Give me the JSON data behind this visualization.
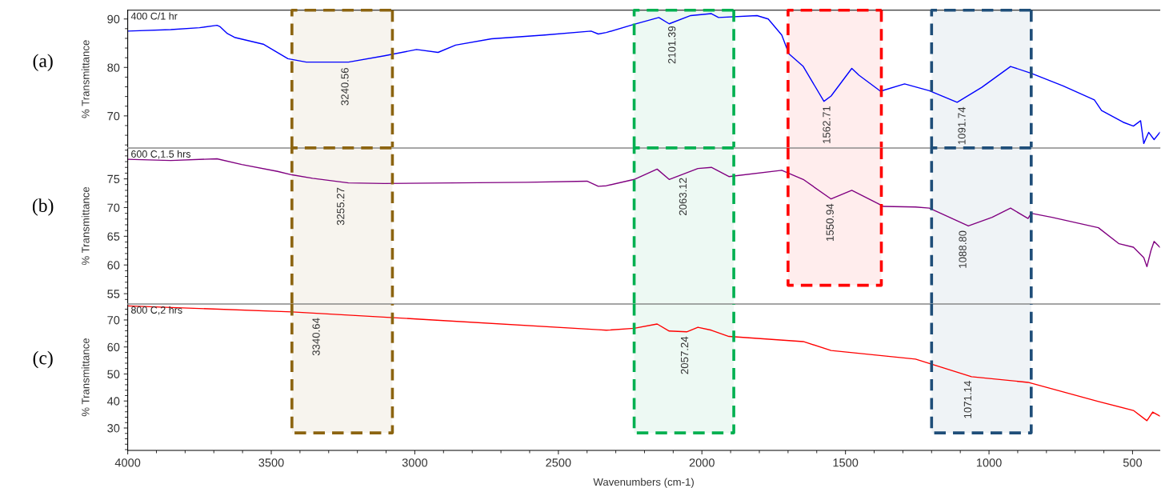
{
  "chart_data": [
    {
      "type": "line",
      "ylabel": "% Transmittance",
      "xlim": [
        4000,
        405
      ],
      "xticks": [
        4000,
        3500,
        3000,
        2500,
        2000,
        1500,
        1000,
        500
      ],
      "ylim": [
        63.4,
        91.8
      ],
      "yticks": [
        70,
        80,
        90
      ],
      "tick_labels": "y",
      "series": [
        {
          "name": "400 C/1 hr",
          "color": "#0000ff",
          "x": [
            4000,
            3850,
            3750,
            3689,
            3678,
            3653,
            3628,
            3528,
            3442,
            3378,
            3231,
            3106,
            2994,
            2919,
            2858,
            2733,
            2547,
            2386,
            2361,
            2333,
            2236,
            2150,
            2114,
            2039,
            1967,
            1942,
            1808,
            1769,
            1722,
            1697,
            1647,
            1575,
            1550,
            1478,
            1453,
            1378,
            1294,
            1208,
            1111,
            1025,
            925,
            853,
            742,
            633,
            608,
            533,
            497,
            472,
            461,
            444,
            425,
            405
          ],
          "values": [
            87.5,
            87.8,
            88.2,
            88.7,
            88.4,
            87.0,
            86.2,
            84.8,
            81.8,
            81.1,
            81.1,
            82.4,
            83.7,
            83.1,
            84.6,
            85.9,
            86.7,
            87.5,
            86.9,
            87.2,
            88.9,
            90.3,
            89.0,
            90.7,
            91.1,
            90.3,
            90.7,
            90.0,
            86.7,
            82.8,
            80.2,
            73.0,
            74.1,
            79.8,
            78.4,
            75.1,
            76.6,
            75.2,
            72.8,
            75.9,
            80.2,
            78.8,
            76.2,
            73.3,
            71.1,
            68.7,
            67.9,
            69.0,
            64.3,
            66.6,
            65.1,
            66.6
          ]
        }
      ],
      "annotations": [
        "(a)",
        {
          "text": "3240.56",
          "x": 3240.56,
          "y": 80.9
        },
        {
          "text": "2101.39",
          "x": 2101.39,
          "y": 89.5
        },
        {
          "text": "1562.71",
          "x": 1562.71,
          "y": 73.0
        },
        {
          "text": "1091.74",
          "x": 1091.74,
          "y": 72.8
        }
      ],
      "bands": [
        {
          "axis": "x",
          "from": 3428,
          "to": 3078,
          "label": null,
          "color": "#8c6410"
        },
        {
          "axis": "x",
          "from": 2236,
          "to": 1889,
          "label": null,
          "color": "#00b050"
        },
        {
          "axis": "x",
          "from": 1700,
          "to": 1375,
          "label": null,
          "color": "#ff0000"
        },
        {
          "axis": "x",
          "from": 1200,
          "to": 853,
          "label": null,
          "color": "#1f4e79"
        }
      ]
    },
    {
      "type": "line",
      "ylabel": "% Transmittance",
      "xlim": [
        4000,
        405
      ],
      "xticks": [
        4000,
        3500,
        3000,
        2500,
        2000,
        1500,
        1000,
        500
      ],
      "ylim": [
        53.2,
        80.4
      ],
      "yticks": [
        55,
        60,
        65,
        70,
        75
      ],
      "tick_labels": "y",
      "series": [
        {
          "name": "600 C,1.5 hrs",
          "color": "#800080",
          "x": [
            4000,
            3850,
            3689,
            3603,
            3478,
            3428,
            3356,
            3231,
            3106,
            2611,
            2400,
            2361,
            2333,
            2236,
            2156,
            2114,
            2014,
            1967,
            1906,
            1722,
            1647,
            1550,
            1478,
            1367,
            1256,
            1208,
            1072,
            989,
            925,
            864,
            853,
            781,
            619,
            547,
            497,
            461,
            450,
            436,
            425,
            405
          ],
          "values": [
            78.4,
            78.2,
            78.5,
            77.5,
            76.3,
            75.7,
            75.1,
            74.3,
            74.2,
            74.4,
            74.6,
            73.7,
            73.8,
            74.9,
            76.7,
            74.9,
            76.8,
            77.0,
            75.4,
            76.5,
            74.9,
            71.5,
            73.0,
            70.2,
            70.1,
            69.9,
            66.8,
            68.3,
            69.9,
            68.1,
            69.0,
            68.3,
            66.5,
            63.7,
            63.1,
            61.3,
            59.7,
            62.5,
            64.1,
            63.1
          ]
        }
      ],
      "annotations": [
        "(b)",
        {
          "text": "3255.27",
          "x": 3255.27,
          "y": 74.3
        },
        {
          "text": "2063.12",
          "x": 2063.12,
          "y": 76.0
        },
        {
          "text": "1550.94",
          "x": 1550.94,
          "y": 71.5
        },
        {
          "text": "1088.80",
          "x": 1088.8,
          "y": 66.8
        }
      ],
      "bands": [
        {
          "axis": "x",
          "from": 3428,
          "to": 3078,
          "label": null,
          "color": "#8c6410"
        },
        {
          "axis": "x",
          "from": 2236,
          "to": 1889,
          "label": null,
          "color": "#00b050"
        },
        {
          "axis": "x",
          "from": 1700,
          "to": 1375,
          "label": null,
          "color": "#ff0000"
        },
        {
          "axis": "x",
          "from": 1200,
          "to": 853,
          "label": null,
          "color": "#1f4e79"
        }
      ]
    },
    {
      "type": "line",
      "ylabel": "% Transmittance",
      "xlabel": "Wavenumbers (cm-1)",
      "xlim": [
        4000,
        405
      ],
      "xticks": [
        4000,
        3500,
        3000,
        2500,
        2000,
        1500,
        1000,
        500
      ],
      "ylim": [
        21.7,
        75.9
      ],
      "yticks": [
        30,
        40,
        50,
        60,
        70
      ],
      "series": [
        {
          "name": "800 C,2 hrs",
          "color": "#ff0000",
          "x": [
            4000,
            3428,
            2983,
            2361,
            2333,
            2236,
            2156,
            2114,
            2053,
            2014,
            1967,
            1906,
            1647,
            1550,
            1256,
            1061,
            864,
            619,
            497,
            450,
            430,
            405
          ],
          "values": [
            75.2,
            73.0,
            70.3,
            66.4,
            66.2,
            66.9,
            68.5,
            65.9,
            65.6,
            67.3,
            66.2,
            63.9,
            62.0,
            58.7,
            55.5,
            49.0,
            46.9,
            39.8,
            36.5,
            32.7,
            35.9,
            34.4
          ]
        }
      ],
      "annotations": [
        "(c)",
        {
          "text": "3340.64",
          "x": 3340.64,
          "y": 72.5
        },
        {
          "text": "2057.24",
          "x": 2057.24,
          "y": 65.6
        },
        {
          "text": "1071.14",
          "x": 1071.14,
          "y": 49.2
        }
      ],
      "bands": [
        {
          "axis": "x",
          "from": 3428,
          "to": 3078,
          "label": null,
          "color": "#8c6410"
        },
        {
          "axis": "x",
          "from": 2236,
          "to": 1889,
          "label": null,
          "color": "#00b050"
        },
        {
          "axis": "x",
          "from": 1200,
          "to": 853,
          "label": null,
          "color": "#1f4e79"
        }
      ]
    }
  ]
}
